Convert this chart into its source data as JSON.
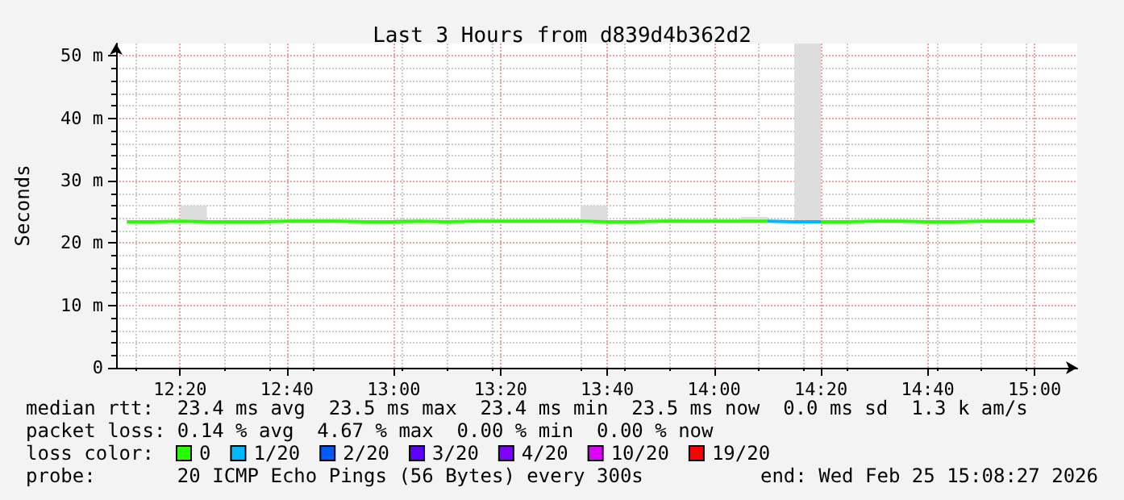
{
  "chart_data": {
    "type": "step",
    "title": "Last 3 Hours from d839d4b362d2",
    "ylabel": "Seconds",
    "legend_title": "loss color:",
    "legend": "bottom",
    "grid": true,
    "marker": "none",
    "line_style": "solid",
    "x": [
      "2026-02-25T12:10",
      "2026-02-25T12:15",
      "2026-02-25T12:20",
      "2026-02-25T12:25",
      "2026-02-25T12:30",
      "2026-02-25T12:35",
      "2026-02-25T12:40",
      "2026-02-25T12:45",
      "2026-02-25T12:50",
      "2026-02-25T12:55",
      "2026-02-25T13:00",
      "2026-02-25T13:05",
      "2026-02-25T13:10",
      "2026-02-25T13:15",
      "2026-02-25T13:20",
      "2026-02-25T13:25",
      "2026-02-25T13:30",
      "2026-02-25T13:35",
      "2026-02-25T13:40",
      "2026-02-25T13:45",
      "2026-02-25T13:50",
      "2026-02-25T13:55",
      "2026-02-25T14:00",
      "2026-02-25T14:05",
      "2026-02-25T14:10",
      "2026-02-25T14:15",
      "2026-02-25T14:20",
      "2026-02-25T14:25",
      "2026-02-25T14:30",
      "2026-02-25T14:35",
      "2026-02-25T14:40",
      "2026-02-25T14:45",
      "2026-02-25T14:50",
      "2026-02-25T14:55",
      "2026-02-25T15:00"
    ],
    "series": [
      {
        "name": "0",
        "color": "#26ff00",
        "values": [
          23.4,
          23.4,
          23.5,
          23.4,
          23.4,
          23.4,
          23.5,
          23.5,
          23.5,
          23.4,
          23.4,
          23.5,
          23.4,
          23.5,
          23.5,
          23.5,
          23.5,
          23.5,
          23.4,
          23.4,
          23.5,
          23.5,
          23.5,
          23.5,
          23.5,
          null,
          23.4,
          23.4,
          23.5,
          23.5,
          23.4,
          23.4,
          23.5,
          23.5,
          23.5
        ],
        "lower": [
          23.3,
          23.3,
          23.3,
          23.3,
          23.3,
          23.3,
          23.3,
          23.3,
          23.3,
          23.3,
          23.3,
          23.3,
          23.3,
          23.3,
          23.3,
          23.3,
          23.3,
          23.3,
          23.3,
          23.3,
          23.3,
          23.3,
          23.3,
          23.3,
          23.3,
          23.3,
          23.3,
          23.3,
          23.3,
          23.3,
          23.3,
          23.3,
          23.3,
          23.3,
          23.3
        ],
        "upper": [
          23.6,
          23.6,
          26,
          23.6,
          23.6,
          23.6,
          23.9,
          23.9,
          23.6,
          23.6,
          23.8,
          23.6,
          23.6,
          23.6,
          23.6,
          23.6,
          23.6,
          26,
          23.6,
          23.6,
          23.8,
          23.6,
          23.6,
          24.2,
          23.6,
          52,
          23.6,
          23.6,
          23.6,
          23.6,
          23.6,
          23.6,
          23.6,
          23.6,
          23.6
        ]
      },
      {
        "name": "1/20",
        "color": "#00b8ff",
        "x": [
          "2026-02-25T14:10",
          "2026-02-25T14:15",
          "2026-02-25T14:20"
        ],
        "values": [
          23.5,
          23.4,
          23.4
        ]
      },
      {
        "name": "2/20",
        "color": "#0059ff",
        "values": [
          null,
          null,
          null,
          null,
          null,
          null,
          null,
          null,
          null,
          null,
          null,
          null,
          null,
          null,
          null,
          null,
          null,
          null,
          null,
          null,
          null,
          null,
          null,
          null,
          null,
          null,
          null,
          null,
          null,
          null,
          null,
          null,
          null,
          null,
          null
        ]
      },
      {
        "name": "3/20",
        "color": "#5e00ff",
        "values": [
          null,
          null,
          null,
          null,
          null,
          null,
          null,
          null,
          null,
          null,
          null,
          null,
          null,
          null,
          null,
          null,
          null,
          null,
          null,
          null,
          null,
          null,
          null,
          null,
          null,
          null,
          null,
          null,
          null,
          null,
          null,
          null,
          null,
          null,
          null
        ]
      },
      {
        "name": "4/20",
        "color": "#7e00ff",
        "values": [
          null,
          null,
          null,
          null,
          null,
          null,
          null,
          null,
          null,
          null,
          null,
          null,
          null,
          null,
          null,
          null,
          null,
          null,
          null,
          null,
          null,
          null,
          null,
          null,
          null,
          null,
          null,
          null,
          null,
          null,
          null,
          null,
          null,
          null,
          null
        ]
      },
      {
        "name": "10/20",
        "color": "#dd00ff",
        "values": [
          null,
          null,
          null,
          null,
          null,
          null,
          null,
          null,
          null,
          null,
          null,
          null,
          null,
          null,
          null,
          null,
          null,
          null,
          null,
          null,
          null,
          null,
          null,
          null,
          null,
          null,
          null,
          null,
          null,
          null,
          null,
          null,
          null,
          null,
          null
        ]
      },
      {
        "name": "19/20",
        "color": "#ff0000",
        "values": [
          null,
          null,
          null,
          null,
          null,
          null,
          null,
          null,
          null,
          null,
          null,
          null,
          null,
          null,
          null,
          null,
          null,
          null,
          null,
          null,
          null,
          null,
          null,
          null,
          null,
          null,
          null,
          null,
          null,
          null,
          null,
          null,
          null,
          null,
          null
        ]
      }
    ],
    "xlim": [
      "2026-02-25T12:08",
      "2026-02-25T15:08"
    ],
    "xticks": [
      {
        "value": "2026-02-25T12:20",
        "label": "12:20"
      },
      {
        "value": "2026-02-25T12:40",
        "label": "12:40"
      },
      {
        "value": "2026-02-25T13:00",
        "label": "13:00"
      },
      {
        "value": "2026-02-25T13:20",
        "label": "13:20"
      },
      {
        "value": "2026-02-25T13:40",
        "label": "13:40"
      },
      {
        "value": "2026-02-25T14:00",
        "label": "14:00"
      },
      {
        "value": "2026-02-25T14:20",
        "label": "14:20"
      },
      {
        "value": "2026-02-25T14:40",
        "label": "14:40"
      },
      {
        "value": "2026-02-25T15:00",
        "label": "15:00"
      }
    ],
    "ylim": [
      0,
      52
    ],
    "yticks": [
      0,
      {
        "value": 10,
        "label": "10 m"
      },
      {
        "value": 20,
        "label": "20 m"
      },
      {
        "value": 30,
        "label": "30 m"
      },
      {
        "value": 40,
        "label": "40 m"
      },
      {
        "value": 50,
        "label": "50 m"
      }
    ],
    "annotations": [
      "median rtt:  23.4 ms avg  23.5 ms max  23.4 ms min  23.5 ms now  0.0 ms sd  1.3 k am/s",
      "packet loss: 0.14 % avg  4.67 % max  0.00 % min  0.00 % now",
      "probe:       20 ICMP Echo Pings (56 Bytes) every 300s",
      "end: Wed Feb 25 15:08:27 2026"
    ]
  }
}
